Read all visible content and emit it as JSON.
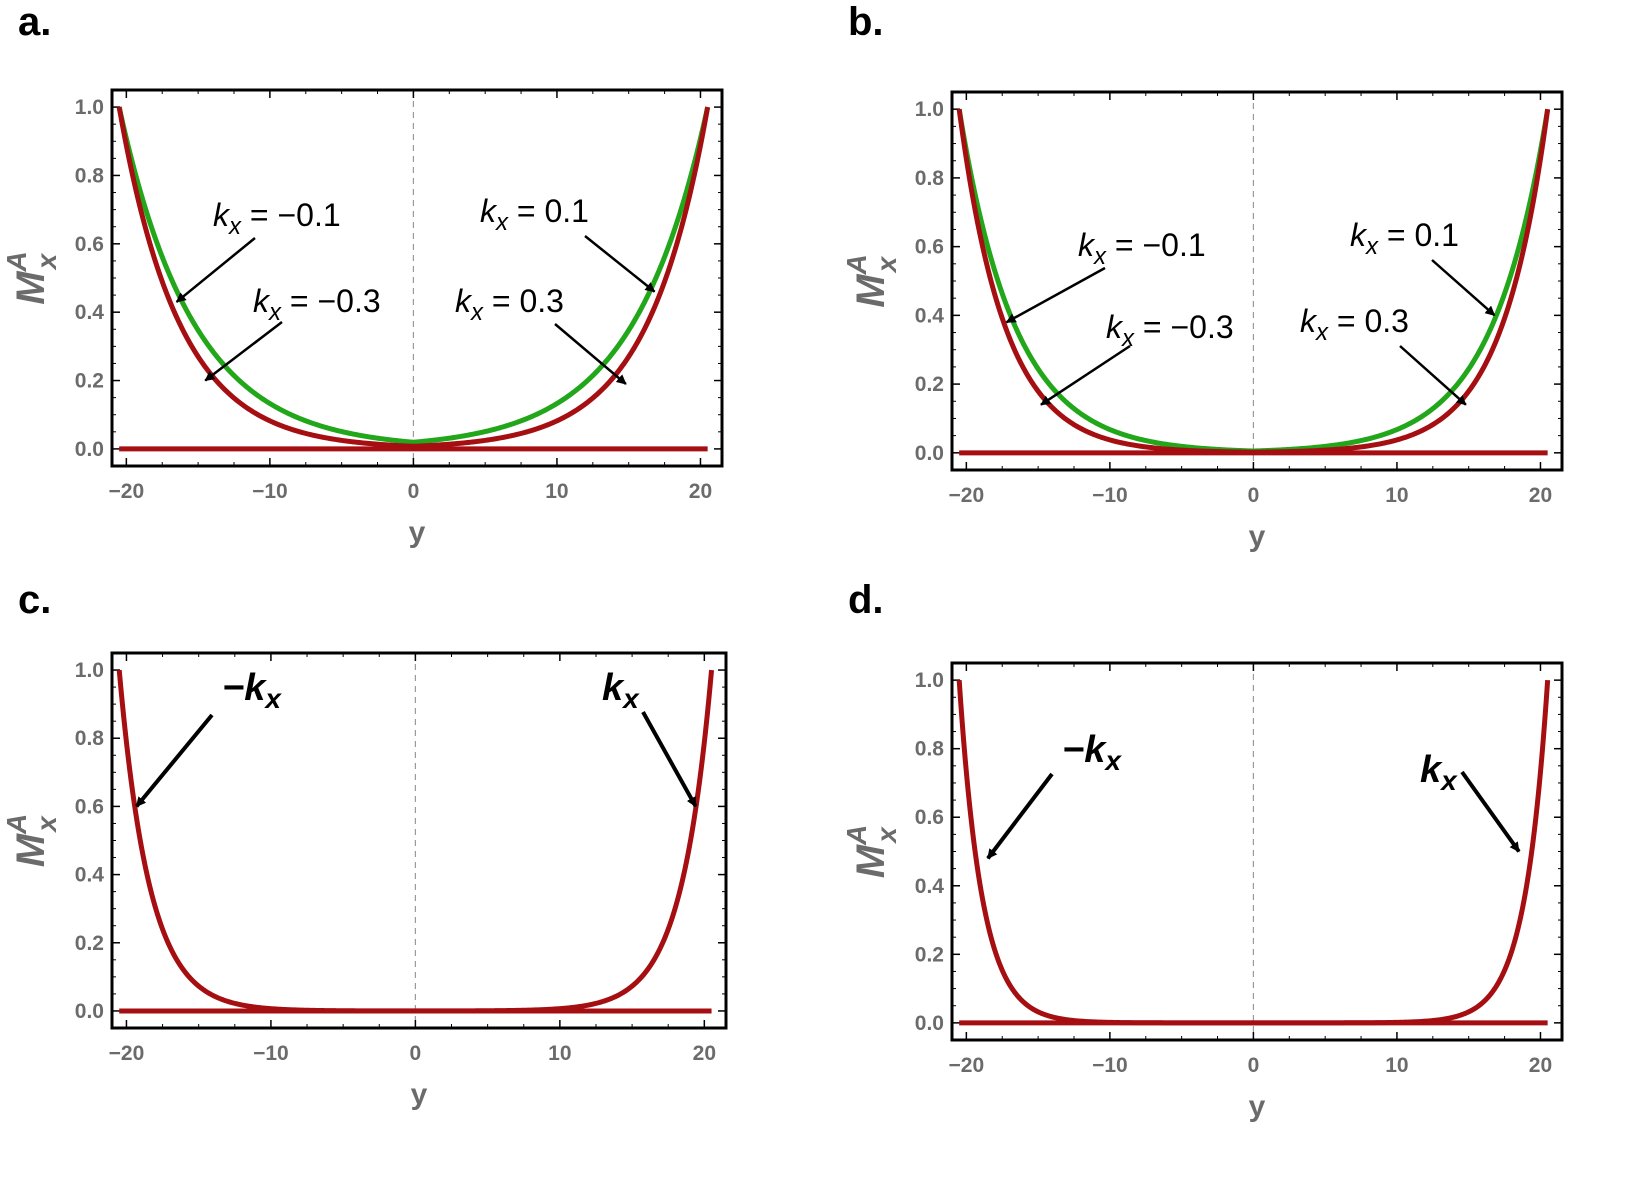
{
  "chart_data": [
    {
      "panel": "a.",
      "type": "line",
      "xlabel": "y",
      "ylabel_main": "M",
      "ylabel_sup": "A",
      "ylabel_sub": "x",
      "xlim": [
        -21,
        21.5
      ],
      "ylim": [
        -0.05,
        1.05
      ],
      "xticks": [
        "-20",
        "-10",
        "0",
        "10",
        "20"
      ],
      "xtick_values": [
        -20,
        -10,
        0,
        10,
        20
      ],
      "yticks": [
        "0.0",
        "0.2",
        "0.4",
        "0.6",
        "0.8",
        "1.0"
      ],
      "ytick_values": [
        0,
        0.2,
        0.4,
        0.6,
        0.8,
        1.0
      ],
      "y_decay_length": {
        "green": 5.2,
        "red": 4.2
      },
      "x_edge": 20.5,
      "series": [
        {
          "color": "#22a61a",
          "points": [
            [
              -20.5,
              1.0
            ],
            [
              -15,
              0.35
            ],
            [
              -10,
              0.12
            ],
            [
              -5,
              0.04
            ],
            [
              0,
              0.02
            ],
            [
              5,
              0.04
            ],
            [
              10,
              0.12
            ],
            [
              15,
              0.35
            ],
            [
              20.5,
              1.0
            ]
          ]
        },
        {
          "color": "#a50f12",
          "points": [
            [
              -20.5,
              1.0
            ],
            [
              -15,
              0.27
            ],
            [
              -10,
              0.07
            ],
            [
              -5,
              0.02
            ],
            [
              0,
              0.01
            ],
            [
              5,
              0.02
            ],
            [
              10,
              0.07
            ],
            [
              15,
              0.27
            ],
            [
              20.5,
              1.0
            ]
          ]
        },
        {
          "color": "#a50f12",
          "points": [
            [
              -20.5,
              0
            ],
            [
              20.5,
              0
            ]
          ]
        }
      ],
      "annotations": [
        {
          "label": "k",
          "sub": "x",
          "rhs": " = −0.1",
          "tip": [
            -16.5,
            0.43
          ]
        },
        {
          "label": "k",
          "sub": "x",
          "rhs": " = −0.3",
          "tip": [
            -14.5,
            0.2
          ]
        },
        {
          "label": "k",
          "sub": "x",
          "rhs": " = 0.1",
          "tip": [
            16.8,
            0.46
          ]
        },
        {
          "label": "k",
          "sub": "x",
          "rhs": " = 0.3",
          "tip": [
            14.8,
            0.19
          ]
        }
      ]
    },
    {
      "panel": "b.",
      "type": "line",
      "xlabel": "y",
      "ylabel_main": "M",
      "ylabel_sup": "A",
      "ylabel_sub": "x",
      "xlim": [
        -21,
        21.5
      ],
      "ylim": [
        -0.05,
        1.05
      ],
      "xticks": [
        "-20",
        "-10",
        "0",
        "10",
        "20"
      ],
      "xtick_values": [
        -20,
        -10,
        0,
        10,
        20
      ],
      "yticks": [
        "0.0",
        "0.2",
        "0.4",
        "0.6",
        "0.8",
        "1.0"
      ],
      "ytick_values": [
        0,
        0.2,
        0.4,
        0.6,
        0.8,
        1.0
      ],
      "y_decay_length": {
        "green": 3.9,
        "red": 3.2
      },
      "x_edge": 20.5,
      "series": [
        {
          "color": "#22a61a",
          "points": [
            [
              -20.5,
              1.0
            ],
            [
              -15,
              0.25
            ],
            [
              -10,
              0.07
            ],
            [
              0,
              0.0
            ],
            [
              10,
              0.07
            ],
            [
              15,
              0.25
            ],
            [
              20.5,
              1.0
            ]
          ]
        },
        {
          "color": "#a50f12",
          "points": [
            [
              -20.5,
              1.0
            ],
            [
              -15,
              0.18
            ],
            [
              -10,
              0.04
            ],
            [
              0,
              0.0
            ],
            [
              10,
              0.04
            ],
            [
              15,
              0.18
            ],
            [
              20.5,
              1.0
            ]
          ]
        },
        {
          "color": "#a50f12",
          "points": [
            [
              -20.5,
              0
            ],
            [
              20.5,
              0
            ]
          ]
        }
      ],
      "annotations": [
        {
          "label": "k",
          "sub": "x",
          "rhs": " = −0.1",
          "tip": [
            -17.2,
            0.38
          ]
        },
        {
          "label": "k",
          "sub": "x",
          "rhs": " = −0.3",
          "tip": [
            -14.8,
            0.14
          ]
        },
        {
          "label": "k",
          "sub": "x",
          "rhs": " = 0.1",
          "tip": [
            16.8,
            0.4
          ]
        },
        {
          "label": "k",
          "sub": "x",
          "rhs": " = 0.3",
          "tip": [
            14.8,
            0.14
          ]
        }
      ]
    },
    {
      "panel": "c.",
      "type": "line",
      "xlabel": "y",
      "ylabel_main": "M",
      "ylabel_sup": "A",
      "ylabel_sub": "x",
      "xlim": [
        -21,
        21.5
      ],
      "ylim": [
        -0.05,
        1.05
      ],
      "xticks": [
        "-20",
        "-10",
        "0",
        "10",
        "20"
      ],
      "xtick_values": [
        -20,
        -10,
        0,
        10,
        20
      ],
      "yticks": [
        "0.0",
        "0.2",
        "0.4",
        "0.6",
        "0.8",
        "1.0"
      ],
      "ytick_values": [
        0,
        0.2,
        0.4,
        0.6,
        0.8,
        1.0
      ],
      "y_decay_length": {
        "red": 2.1
      },
      "x_edge": 20.5,
      "series": [
        {
          "color": "#a50f12",
          "points": [
            [
              -20.5,
              1.0
            ],
            [
              -18,
              0.3
            ],
            [
              -15,
              0.07
            ],
            [
              -10,
              0.0
            ],
            [
              10,
              0.0
            ],
            [
              15,
              0.07
            ],
            [
              18,
              0.3
            ],
            [
              20.5,
              1.0
            ]
          ]
        },
        {
          "color": "#a50f12",
          "points": [
            [
              -20.5,
              0
            ],
            [
              20.5,
              0
            ]
          ]
        }
      ],
      "annotations": [
        {
          "label": "−k",
          "sub": "x",
          "rhs": "",
          "tip": [
            -19.3,
            0.6
          ],
          "bold": true
        },
        {
          "label": "k",
          "sub": "x",
          "rhs": "",
          "tip": [
            19.4,
            0.6
          ],
          "bold": true
        }
      ]
    },
    {
      "panel": "d.",
      "type": "line",
      "xlabel": "y",
      "ylabel_main": "M",
      "ylabel_sup": "A",
      "ylabel_sub": "x",
      "xlim": [
        -21,
        21.5
      ],
      "ylim": [
        -0.05,
        1.05
      ],
      "xticks": [
        "-20",
        "-10",
        "0",
        "10",
        "20"
      ],
      "xtick_values": [
        -20,
        -10,
        0,
        10,
        20
      ],
      "yticks": [
        "0.0",
        "0.2",
        "0.4",
        "0.6",
        "0.8",
        "1.0"
      ],
      "ytick_values": [
        0,
        0.2,
        0.4,
        0.6,
        0.8,
        1.0
      ],
      "y_decay_length": {
        "red": 1.6
      },
      "x_edge": 20.5,
      "series": [
        {
          "color": "#a50f12",
          "points": [
            [
              -20.5,
              1.0
            ],
            [
              -18,
              0.2
            ],
            [
              -15,
              0.03
            ],
            [
              -10,
              0.0
            ],
            [
              10,
              0.0
            ],
            [
              15,
              0.03
            ],
            [
              18,
              0.2
            ],
            [
              20.5,
              1.0
            ]
          ]
        },
        {
          "color": "#a50f12",
          "points": [
            [
              -20.5,
              0
            ],
            [
              20.5,
              0
            ]
          ]
        }
      ],
      "annotations": [
        {
          "label": "−k",
          "sub": "x",
          "rhs": "",
          "tip": [
            -18.5,
            0.48
          ],
          "bold": true
        },
        {
          "label": "k",
          "sub": "x",
          "rhs": "",
          "tip": [
            18.5,
            0.5
          ],
          "bold": true
        }
      ]
    }
  ]
}
